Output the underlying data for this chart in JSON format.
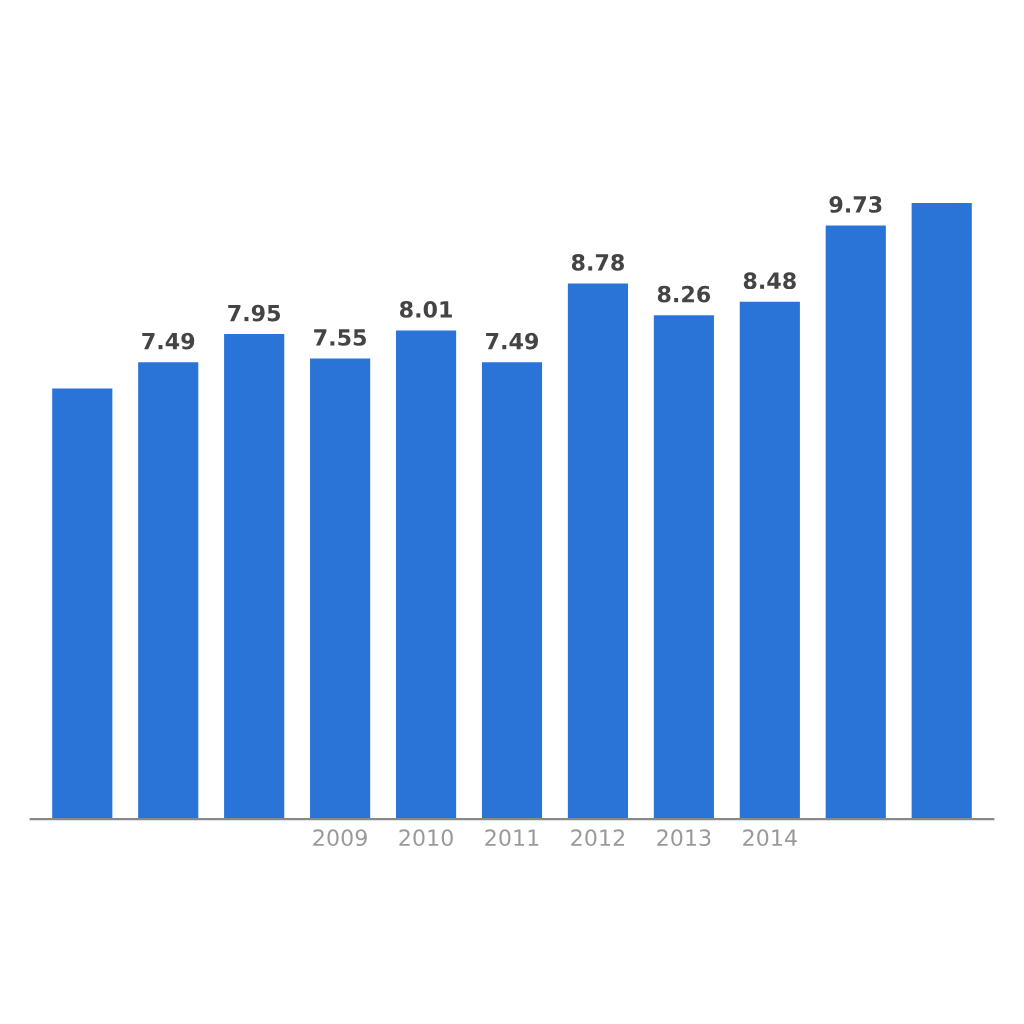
{
  "chart_data": {
    "type": "bar",
    "categories": [
      null,
      null,
      null,
      "2009",
      "2010",
      "2011",
      "2012",
      "2013",
      "2014",
      null,
      null
    ],
    "values": [
      7.06,
      7.49,
      7.95,
      7.55,
      8.01,
      7.49,
      8.78,
      8.26,
      8.48,
      9.73,
      10.1
    ],
    "value_labels": [
      null,
      "7.49",
      "7.95",
      "7.55",
      "8.01",
      "7.49",
      "8.78",
      "8.26",
      "8.48",
      "9.73",
      null
    ],
    "color": "#2a74d8"
  }
}
